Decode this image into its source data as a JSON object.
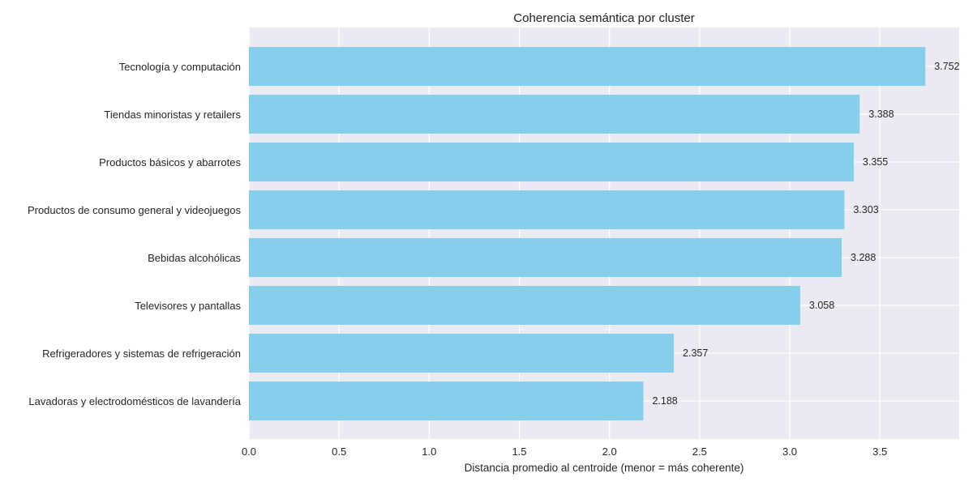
{
  "chart_data": {
    "type": "bar",
    "orientation": "horizontal",
    "title": "Coherencia semántica por cluster",
    "xlabel": "Distancia promedio al centroide (menor = más coherente)",
    "ylabel": "",
    "xlim": [
      0,
      3.94
    ],
    "xticks": [
      "0.0",
      "0.5",
      "1.0",
      "1.5",
      "2.0",
      "2.5",
      "3.0",
      "3.5"
    ],
    "grid": true,
    "colors": {
      "bar": "#87ceeb",
      "plot_background": "#eaeaf2",
      "grid": "#ffffff"
    },
    "categories": [
      "Tecnología y computación",
      "Tiendas minoristas y retailers",
      "Productos básicos y abarrotes",
      "Productos de consumo general y videojuegos",
      "Bebidas alcohólicas",
      "Televisores y pantallas",
      "Refrigeradores y sistemas de refrigeración",
      "Lavadoras y electrodomésticos de lavandería"
    ],
    "values": [
      3.752,
      3.388,
      3.355,
      3.303,
      3.288,
      3.058,
      2.357,
      2.188
    ],
    "value_labels": [
      "3.752",
      "3.388",
      "3.355",
      "3.303",
      "3.288",
      "3.058",
      "2.357",
      "2.188"
    ]
  }
}
